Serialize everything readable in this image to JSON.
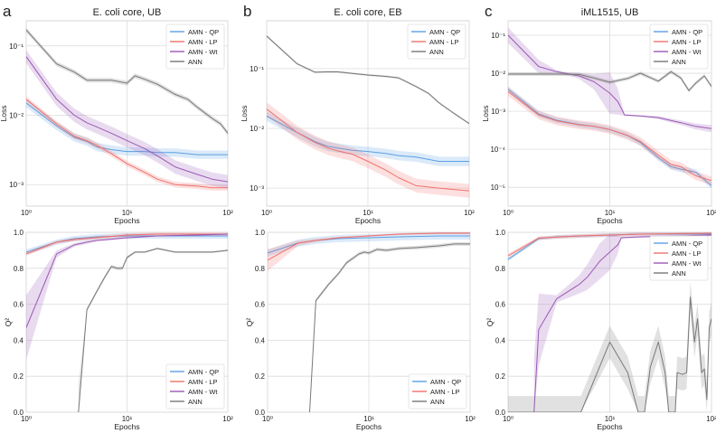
{
  "colors": {
    "qp": "#5b9fe3",
    "lp": "#f0716c",
    "wt": "#9b59b6",
    "ann": "#787878"
  },
  "chart_data": [
    {
      "type": "line",
      "panel": "a",
      "title": "E. coli core, UB",
      "xlabel": "Epochs",
      "ylabel": "Loss",
      "xscale": "log",
      "yscale": "log",
      "xlim": [
        1,
        100
      ],
      "ylim": [
        0.00049,
        0.23
      ],
      "xticks": [
        1,
        10,
        100
      ],
      "xticklabels": [
        "10⁰",
        "10¹",
        "10²"
      ],
      "yticks": [
        0.001,
        0.01,
        0.1
      ],
      "yticklabels": [
        "10⁻³",
        "10⁻²",
        "10⁻¹"
      ],
      "grid": true,
      "legend": "top-right",
      "series": [
        {
          "name": "AMN - QP",
          "color": "qp",
          "x": [
            1,
            2,
            3,
            4,
            5,
            7,
            10,
            15,
            20,
            30,
            50,
            70,
            100
          ],
          "y": [
            0.015,
            0.007,
            0.0048,
            0.0042,
            0.0035,
            0.0032,
            0.003,
            0.003,
            0.0029,
            0.0029,
            0.0027,
            0.0027,
            0.0027
          ],
          "band": 1.15
        },
        {
          "name": "AMN - LP",
          "color": "lp",
          "x": [
            1,
            2,
            3,
            4,
            5,
            7,
            10,
            15,
            20,
            30,
            50,
            70,
            100
          ],
          "y": [
            0.017,
            0.0075,
            0.005,
            0.0043,
            0.0037,
            0.0028,
            0.002,
            0.0015,
            0.0012,
            0.001,
            0.00095,
            0.0009,
            0.0009
          ],
          "band": 1.1
        },
        {
          "name": "AMN - Wt",
          "color": "wt",
          "x": [
            1,
            2,
            3,
            4,
            5,
            7,
            10,
            15,
            20,
            30,
            50,
            70,
            100
          ],
          "y": [
            0.07,
            0.017,
            0.01,
            0.0078,
            0.0068,
            0.0055,
            0.0043,
            0.0033,
            0.0026,
            0.0018,
            0.0014,
            0.0012,
            0.0011
          ],
          "band": 1.25
        },
        {
          "name": "ANN",
          "color": "ann",
          "x": [
            1,
            2,
            3,
            4,
            5,
            7,
            10,
            12,
            15,
            20,
            30,
            40,
            50,
            70,
            85,
            100
          ],
          "y": [
            0.17,
            0.055,
            0.042,
            0.032,
            0.032,
            0.032,
            0.029,
            0.037,
            0.033,
            0.028,
            0.02,
            0.017,
            0.013,
            0.009,
            0.0075,
            0.0055
          ],
          "band": 1.08
        }
      ]
    },
    {
      "type": "line",
      "panel": "b",
      "title": "E. coli core, EB",
      "xlabel": "Epochs",
      "ylabel": "Loss",
      "xscale": "log",
      "yscale": "log",
      "xlim": [
        1,
        100
      ],
      "ylim": [
        0.0005,
        0.63
      ],
      "xticks": [
        1,
        10,
        100
      ],
      "xticklabels": [
        "10⁰",
        "10¹",
        "10²"
      ],
      "yticks": [
        0.001,
        0.01,
        0.1
      ],
      "yticklabels": [
        "10⁻³",
        "10⁻²",
        "10⁻¹"
      ],
      "grid": true,
      "legend": "top-right",
      "series": [
        {
          "name": "AMN - QP",
          "color": "qp",
          "x": [
            1,
            2,
            3,
            4,
            5,
            7,
            10,
            15,
            20,
            30,
            50,
            70,
            100
          ],
          "y": [
            0.016,
            0.0085,
            0.006,
            0.005,
            0.0047,
            0.0043,
            0.0041,
            0.0038,
            0.0035,
            0.0033,
            0.0028,
            0.0028,
            0.0028
          ],
          "band": 1.2
        },
        {
          "name": "AMN - LP",
          "color": "lp",
          "x": [
            1,
            2,
            3,
            4,
            5,
            7,
            10,
            15,
            20,
            30,
            50,
            70,
            100
          ],
          "y": [
            0.021,
            0.0085,
            0.0058,
            0.0047,
            0.0042,
            0.0037,
            0.0028,
            0.002,
            0.0015,
            0.0011,
            0.001,
            0.00095,
            0.0009
          ],
          "band": 1.3
        },
        {
          "name": "ANN",
          "color": "ann",
          "x": [
            1,
            2,
            3,
            4,
            5,
            7,
            10,
            15,
            20,
            30,
            40,
            50,
            70,
            100
          ],
          "y": [
            0.35,
            0.12,
            0.087,
            0.088,
            0.088,
            0.083,
            0.078,
            0.074,
            0.07,
            0.05,
            0.038,
            0.027,
            0.018,
            0.012
          ],
          "band": 1.04
        }
      ]
    },
    {
      "type": "line",
      "panel": "c",
      "title": "iML1515, UB",
      "xlabel": "Epochs",
      "ylabel": "Loss",
      "xscale": "log",
      "yscale": "log",
      "xlim": [
        1,
        100
      ],
      "ylim": [
        3.2e-06,
        0.24
      ],
      "xticks": [
        1,
        10,
        100
      ],
      "xticklabels": [
        "10⁰",
        "10¹",
        "10²"
      ],
      "yticks": [
        1e-05,
        0.0001,
        0.001,
        0.01,
        0.1
      ],
      "yticklabels": [
        "10⁻⁵",
        "10⁻⁴",
        "10⁻³",
        "10⁻²",
        "10⁻¹"
      ],
      "grid": true,
      "legend": "top-right",
      "series": [
        {
          "name": "AMN - QP",
          "color": "qp",
          "x": [
            1,
            2,
            3,
            5,
            7,
            10,
            15,
            20,
            30,
            40,
            50,
            70,
            100
          ],
          "y": [
            0.0038,
            0.00085,
            0.00058,
            0.00045,
            0.0004,
            0.00033,
            0.00023,
            0.00015,
            6e-05,
            3.5e-05,
            3e-05,
            2.5e-05,
            1.1e-05
          ],
          "band": 1.2
        },
        {
          "name": "AMN - LP",
          "color": "lp",
          "x": [
            1,
            2,
            3,
            5,
            7,
            10,
            15,
            20,
            30,
            40,
            50,
            70,
            100
          ],
          "y": [
            0.0033,
            0.0008,
            0.00056,
            0.00044,
            0.0004,
            0.00033,
            0.00023,
            0.00016,
            7e-05,
            4e-05,
            3.5e-05,
            2e-05,
            1.5e-05
          ],
          "band": 1.3
        },
        {
          "name": "AMN - Wt",
          "color": "wt",
          "x": [
            1,
            2,
            3,
            4,
            5,
            7,
            10,
            12,
            14,
            20,
            30,
            50,
            70,
            100
          ],
          "y": [
            0.1,
            0.015,
            0.011,
            0.0095,
            0.0085,
            0.006,
            0.003,
            0.0018,
            0.0008,
            0.00075,
            0.00068,
            0.0005,
            0.0004,
            0.00035
          ],
          "band": [
            1.6,
            1.5,
            1.1,
            1.1,
            1.2,
            1.6,
            3.5,
            2.2,
            1.05,
            1.05,
            1.1,
            1.15,
            1.2,
            1.25
          ]
        },
        {
          "name": "ANN",
          "color": "ann",
          "x": [
            1,
            2,
            3,
            5,
            7,
            10,
            15,
            20,
            30,
            40,
            50,
            60,
            70,
            85,
            100
          ],
          "y": [
            0.0095,
            0.0095,
            0.0095,
            0.0093,
            0.0075,
            0.0058,
            0.0073,
            0.01,
            0.0062,
            0.011,
            0.0075,
            0.0035,
            0.0055,
            0.0085,
            0.0045
          ],
          "band": 1.12
        }
      ]
    },
    {
      "type": "line",
      "xlabel": "Epochs",
      "ylabel": "Q²",
      "xscale": "log",
      "yscale": "linear",
      "xlim": [
        1,
        100
      ],
      "ylim": [
        0,
        1
      ],
      "xticks": [
        1,
        10,
        100
      ],
      "xticklabels": [
        "10⁰",
        "10¹",
        "10²"
      ],
      "yticks": [
        0,
        0.2,
        0.4,
        0.6,
        0.8,
        1.0
      ],
      "yticklabels": [
        "0.0",
        "0.2",
        "0.4",
        "0.6",
        "0.8",
        "1.0"
      ],
      "grid": true,
      "legend": "bottom-right",
      "series": [
        {
          "name": "AMN - QP",
          "color": "qp",
          "x": [
            1,
            2,
            3,
            5,
            10,
            20,
            50,
            100
          ],
          "y": [
            0.89,
            0.945,
            0.965,
            0.975,
            0.98,
            0.98,
            0.98,
            0.98
          ],
          "band": 0.015
        },
        {
          "name": "AMN - LP",
          "color": "lp",
          "x": [
            1,
            2,
            3,
            5,
            10,
            20,
            50,
            100
          ],
          "y": [
            0.88,
            0.945,
            0.96,
            0.97,
            0.985,
            0.99,
            0.99,
            0.99
          ],
          "band": 0.01
        },
        {
          "name": "AMN - Wt",
          "color": "wt",
          "x": [
            1,
            2,
            3,
            4,
            5,
            7,
            10,
            20,
            50,
            100
          ],
          "y": [
            0.47,
            0.88,
            0.93,
            0.945,
            0.955,
            0.962,
            0.97,
            0.98,
            0.985,
            0.99
          ],
          "band": [
            0.18,
            0.02,
            0.01,
            0.01,
            0.005,
            0.005,
            0.005,
            0.003,
            0.003,
            0.003
          ]
        },
        {
          "name": "ANN",
          "color": "ann",
          "x": [
            3.3,
            4,
            5,
            6,
            7,
            8,
            9,
            10,
            12,
            15,
            20,
            30,
            50,
            70,
            100
          ],
          "y": [
            0,
            0.57,
            0.67,
            0.75,
            0.81,
            0.8,
            0.8,
            0.86,
            0.89,
            0.89,
            0.91,
            0.89,
            0.89,
            0.89,
            0.9
          ],
          "band": [
            0.15,
            0.01,
            0.01,
            0.01,
            0.01,
            0.01,
            0.01,
            0.01,
            0.005,
            0.005,
            0.005,
            0.005,
            0.005,
            0.005,
            0.005
          ]
        }
      ]
    },
    {
      "type": "line",
      "xlabel": "Epochs",
      "ylabel": "Q²",
      "xscale": "log",
      "yscale": "linear",
      "xlim": [
        1,
        100
      ],
      "ylim": [
        0,
        1
      ],
      "xticks": [
        1,
        10,
        100
      ],
      "xticklabels": [
        "10⁰",
        "10¹",
        "10²"
      ],
      "yticks": [
        0,
        0.2,
        0.4,
        0.6,
        0.8,
        1.0
      ],
      "yticklabels": [
        "0.0",
        "0.2",
        "0.4",
        "0.6",
        "0.8",
        "1.0"
      ],
      "grid": true,
      "legend": "bottom-right",
      "series": [
        {
          "name": "AMN - QP",
          "color": "qp",
          "x": [
            1,
            2,
            3,
            5,
            10,
            20,
            50,
            100
          ],
          "y": [
            0.885,
            0.94,
            0.955,
            0.965,
            0.97,
            0.975,
            0.98,
            0.98
          ],
          "band": 0.02
        },
        {
          "name": "AMN - LP",
          "color": "lp",
          "x": [
            1,
            2,
            3,
            5,
            10,
            20,
            50,
            100
          ],
          "y": [
            0.845,
            0.94,
            0.955,
            0.97,
            0.98,
            0.99,
            0.995,
            0.995
          ],
          "band": [
            0.06,
            0.015,
            0.01,
            0.005,
            0.005,
            0.005,
            0.005,
            0.005
          ]
        },
        {
          "name": "ANN",
          "color": "ann",
          "x": [
            2.6,
            3,
            4,
            5,
            6,
            8,
            9,
            10,
            12,
            15,
            20,
            30,
            50,
            70,
            100
          ],
          "y": [
            0,
            0.62,
            0.71,
            0.77,
            0.83,
            0.88,
            0.89,
            0.885,
            0.905,
            0.9,
            0.91,
            0.915,
            0.925,
            0.935,
            0.935
          ],
          "band": 0.01
        }
      ]
    },
    {
      "type": "line",
      "xlabel": "Epochs",
      "ylabel": "Q²",
      "xscale": "log",
      "yscale": "linear",
      "xlim": [
        1,
        100
      ],
      "ylim": [
        0,
        1
      ],
      "xticks": [
        1,
        10,
        100
      ],
      "xticklabels": [
        "10⁰",
        "10¹",
        "10²"
      ],
      "yticks": [
        0,
        0.2,
        0.4,
        0.6,
        0.8,
        1.0
      ],
      "yticklabels": [
        "0.0",
        "0.2",
        "0.4",
        "0.6",
        "0.8",
        "1.0"
      ],
      "grid": true,
      "legend": "top-right",
      "series": [
        {
          "name": "AMN - QP",
          "color": "qp",
          "x": [
            1,
            2,
            3,
            10,
            20,
            100
          ],
          "y": [
            0.85,
            0.965,
            0.975,
            0.985,
            0.99,
            0.99
          ],
          "band": 0.01
        },
        {
          "name": "AMN - LP",
          "color": "lp",
          "x": [
            1,
            2,
            5,
            10,
            20,
            100
          ],
          "y": [
            0.87,
            0.968,
            0.98,
            0.985,
            0.99,
            0.995
          ],
          "band": 0.01
        },
        {
          "name": "AMN - Wt",
          "color": "wt",
          "x": [
            1.8,
            2,
            3,
            5,
            6,
            8,
            10,
            12,
            13,
            20,
            50,
            100
          ],
          "y": [
            0,
            0.46,
            0.63,
            0.71,
            0.75,
            0.84,
            0.89,
            0.93,
            0.97,
            0.975,
            0.98,
            0.985
          ],
          "band": [
            0.3,
            0.2,
            0.02,
            0.05,
            0.07,
            0.1,
            0.1,
            0.05,
            0.005,
            0.005,
            0.005,
            0.005
          ]
        },
        {
          "name": "ANN",
          "color": "ann",
          "x": [
            1,
            5.2,
            10,
            15,
            19,
            22,
            25,
            30,
            35,
            38,
            44,
            46,
            52,
            57,
            62,
            68,
            73,
            80,
            85,
            90,
            95,
            100
          ],
          "y": [
            0,
            0,
            0.39,
            0.22,
            0,
            0,
            0.25,
            0.39,
            0.22,
            0,
            0,
            0.22,
            0.21,
            0.22,
            0.64,
            0.39,
            0.52,
            0.22,
            0.24,
            0.07,
            0.47,
            0.52
          ],
          "band": 0.09
        }
      ]
    }
  ]
}
